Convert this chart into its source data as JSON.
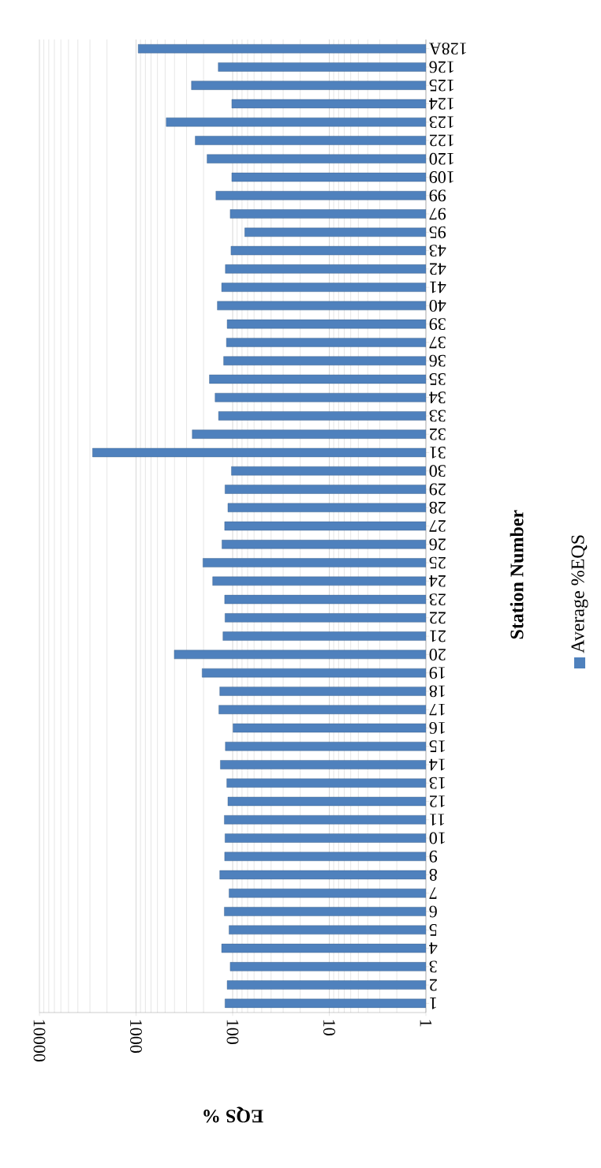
{
  "chart_data": {
    "type": "bar",
    "orientation": "horizontal",
    "xlabel": "EQS %",
    "ylabel": "Station Number",
    "categories": [
      "128A",
      "126",
      "125",
      "124",
      "123",
      "122",
      "120",
      "109",
      "99",
      "97",
      "95",
      "43",
      "42",
      "41",
      "40",
      "39",
      "37",
      "36",
      "35",
      "34",
      "33",
      "32",
      "31",
      "30",
      "29",
      "28",
      "27",
      "26",
      "25",
      "24",
      "23",
      "22",
      "21",
      "20",
      "19",
      "18",
      "17",
      "16",
      "15",
      "14",
      "13",
      "12",
      "11",
      "10",
      "9",
      "8",
      "7",
      "6",
      "5",
      "4",
      "3",
      "2",
      "1"
    ],
    "series": [
      {
        "name": "Average %EQS",
        "color": "#4f81bd",
        "values": [
          950,
          141,
          267,
          102,
          487,
          244,
          184,
          102,
          149,
          106,
          75,
          104,
          119,
          130,
          144,
          114,
          116,
          124,
          174,
          152,
          140,
          262,
          2820,
          103,
          120,
          112,
          121,
          129,
          203,
          161,
          121,
          120,
          126,
          402,
          207,
          136,
          139,
          99,
          119,
          134,
          115,
          112,
          122,
          120,
          121,
          136,
          109,
          122,
          109,
          130,
          106,
          114,
          120
        ]
      }
    ],
    "log": "x",
    "xlim": [
      10000,
      1
    ],
    "xticks": [
      10000,
      1000,
      100,
      10,
      1
    ],
    "grid": "x",
    "legend": "right"
  }
}
